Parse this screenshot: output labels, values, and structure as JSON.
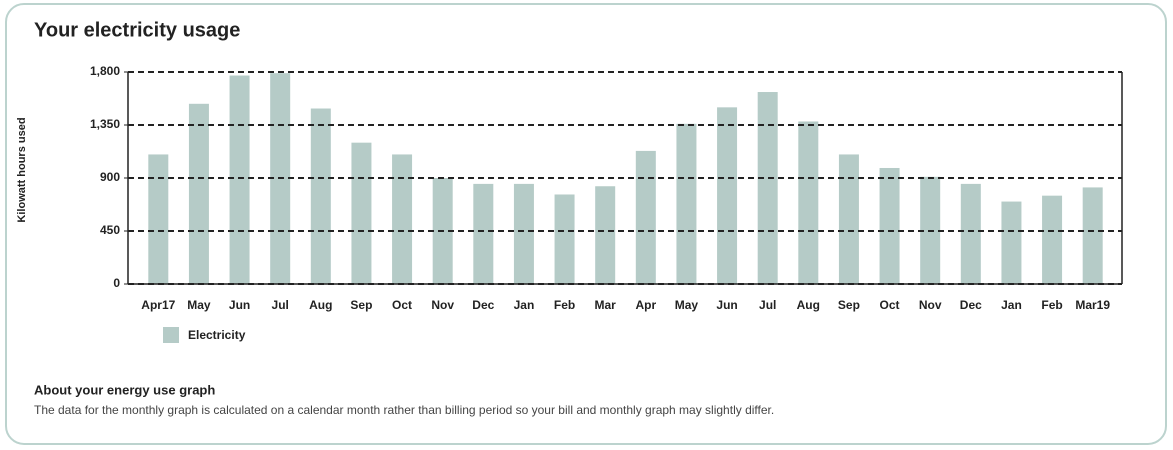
{
  "chart_data": {
    "type": "bar",
    "title": "Your electricity usage",
    "ylabel": "Kilowatt hours used",
    "categories": [
      "Apr17",
      "May",
      "Jun",
      "Jul",
      "Aug",
      "Sep",
      "Oct",
      "Nov",
      "Dec",
      "Jan",
      "Feb",
      "Mar",
      "Apr",
      "May",
      "Jun",
      "Jul",
      "Aug",
      "Sep",
      "Oct",
      "Nov",
      "Dec",
      "Jan",
      "Feb",
      "Mar19"
    ],
    "series": [
      {
        "name": "Electricity",
        "color": "#b5cbc7",
        "values": [
          1100,
          1530,
          1770,
          1790,
          1490,
          1200,
          1100,
          900,
          850,
          850,
          760,
          830,
          1130,
          1360,
          1500,
          1630,
          1380,
          1100,
          985,
          910,
          850,
          700,
          750,
          820
        ]
      }
    ],
    "ylim": [
      0,
      1800
    ],
    "yticks": [
      0,
      {
        "value": 450,
        "label": "450"
      },
      {
        "value": 900,
        "label": "900"
      },
      {
        "value": 1350,
        "label": "1,350"
      },
      {
        "value": 1800,
        "label": "1,800"
      }
    ],
    "grid": true
  },
  "note": {
    "title": "About your energy use graph",
    "text": "The data for the monthly graph is calculated on a calendar month rather than billing period so your bill and monthly graph may slightly differ."
  }
}
